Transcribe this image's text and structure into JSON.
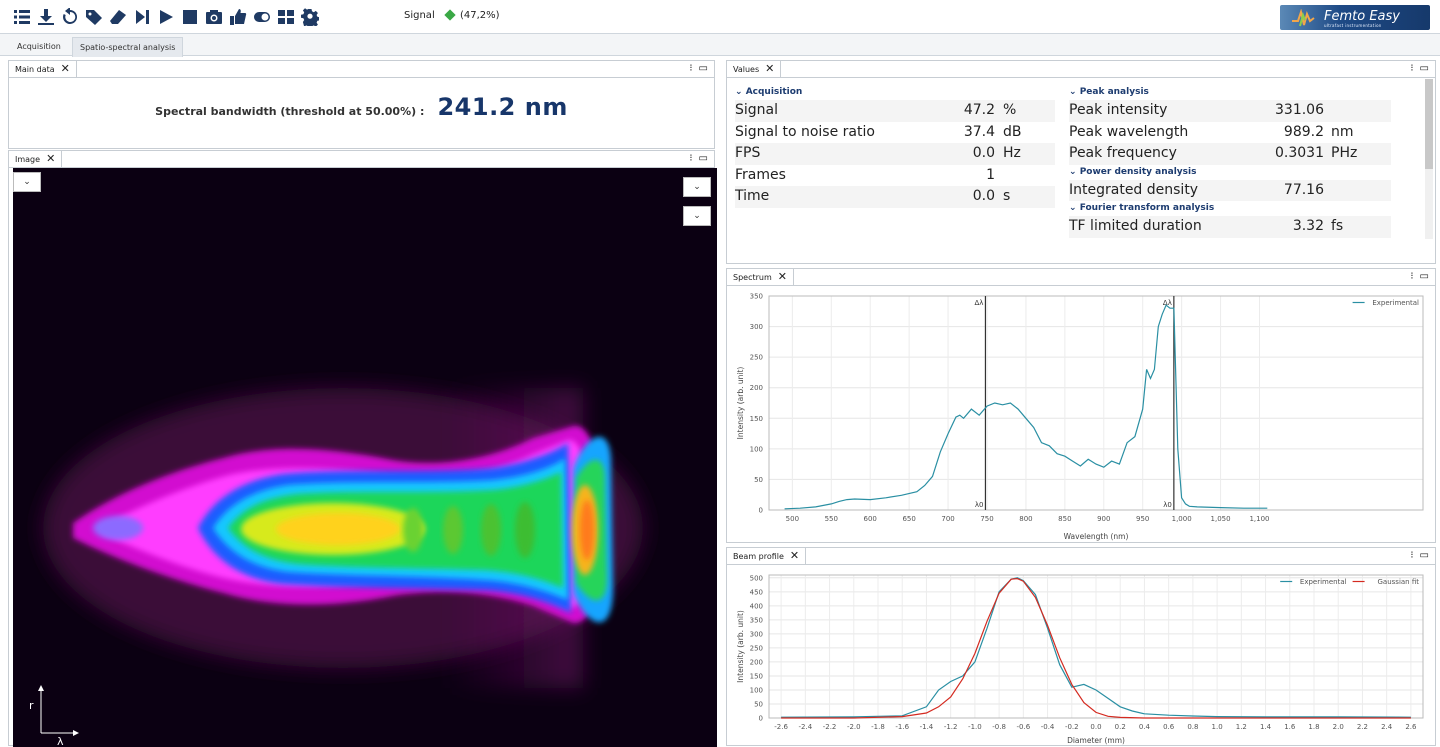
{
  "toolbar": {
    "icons": [
      "list-icon",
      "download-icon",
      "reset-icon",
      "tag-icon",
      "eraser-icon",
      "step-forward-icon",
      "play-icon",
      "stop-icon",
      "camera-icon",
      "thumbs-up-icon",
      "contrast-icon",
      "grid-icon",
      "gear-icon"
    ],
    "signal_label": "Signal",
    "signal_value": "(47,2%)",
    "signal_color": "#3aa845",
    "brand_name": "Femto Easy",
    "brand_sub": "ultrafast instrumentation"
  },
  "tabs": [
    {
      "label": "Acquisition",
      "active": false
    },
    {
      "label": "Spatio-spectral analysis",
      "active": true
    }
  ],
  "main_data": {
    "tab_label": "Main data",
    "bandwidth_label": "Spectral bandwidth (threshold at 50.00%) :",
    "bandwidth_value": "241.2 nm"
  },
  "image_panel": {
    "tab_label": "Image",
    "axis_r": "r",
    "axis_lambda": "λ"
  },
  "values_panel": {
    "tab_label": "Values",
    "acquisition": {
      "title": "Acquisition",
      "rows": [
        {
          "name": "Signal",
          "value": "47.2",
          "unit": "%"
        },
        {
          "name": "Signal to noise ratio",
          "value": "37.4",
          "unit": "dB"
        },
        {
          "name": "FPS",
          "value": "0.0",
          "unit": "Hz"
        },
        {
          "name": "Frames",
          "value": "1",
          "unit": ""
        },
        {
          "name": "Time",
          "value": "0.0",
          "unit": "s"
        }
      ]
    },
    "peak": {
      "title": "Peak analysis",
      "rows": [
        {
          "name": "Peak intensity",
          "value": "331.06",
          "unit": ""
        },
        {
          "name": "Peak wavelength",
          "value": "989.2",
          "unit": "nm"
        },
        {
          "name": "Peak frequency",
          "value": "0.3031",
          "unit": "PHz"
        }
      ]
    },
    "power": {
      "title": "Power density analysis",
      "rows": [
        {
          "name": "Integrated density",
          "value": "77.16",
          "unit": ""
        }
      ]
    },
    "fourier": {
      "title": "Fourier transform analysis",
      "rows": [
        {
          "name": "TF limited duration",
          "value": "3.32",
          "unit": "fs"
        }
      ]
    }
  },
  "chart_data": [
    {
      "type": "line",
      "panel": "Spectrum",
      "xlabel": "Wavelength (nm)",
      "ylabel": "Intensity (arb. unit)",
      "xlim": [
        470,
        1310
      ],
      "ylim": [
        0,
        350
      ],
      "xticks": [
        500,
        550,
        600,
        650,
        700,
        750,
        800,
        850,
        900,
        950,
        1000,
        1050,
        1100
      ],
      "xtick_labels": [
        "500",
        "550",
        "600",
        "650",
        "700",
        "750",
        "800",
        "850",
        "900",
        "950",
        "1,000",
        "1,050",
        "1,100"
      ],
      "yticks": [
        0,
        50,
        100,
        150,
        200,
        250,
        300,
        350
      ],
      "grid": true,
      "legend": "top-right",
      "markers": [
        {
          "x": 748,
          "top_label": "Δλ",
          "bottom_label": "λ0"
        },
        {
          "x": 990,
          "top_label": "Δλ",
          "bottom_label": "λ0"
        }
      ],
      "series": [
        {
          "name": "Experimental",
          "color": "#2a8fa3",
          "x": [
            490,
            510,
            530,
            550,
            560,
            570,
            580,
            600,
            620,
            640,
            660,
            670,
            680,
            690,
            700,
            710,
            715,
            720,
            730,
            740,
            750,
            760,
            770,
            780,
            790,
            800,
            810,
            820,
            830,
            840,
            850,
            860,
            870,
            880,
            890,
            900,
            910,
            920,
            930,
            940,
            950,
            955,
            960,
            965,
            970,
            975,
            980,
            985,
            990,
            995,
            1000,
            1005,
            1010,
            1020,
            1050,
            1080,
            1100,
            1110
          ],
          "y": [
            2,
            3,
            5,
            10,
            14,
            17,
            18,
            17,
            20,
            24,
            30,
            40,
            55,
            95,
            125,
            152,
            155,
            150,
            165,
            155,
            170,
            175,
            172,
            175,
            165,
            150,
            135,
            110,
            105,
            92,
            88,
            80,
            72,
            83,
            75,
            70,
            80,
            75,
            110,
            120,
            165,
            230,
            215,
            230,
            300,
            320,
            335,
            330,
            330,
            100,
            20,
            10,
            6,
            5,
            4,
            3,
            3,
            3
          ]
        }
      ]
    },
    {
      "type": "line",
      "panel": "Beam profile",
      "xlabel": "Diameter (mm)",
      "ylabel": "Intensity (arb. unit)",
      "xlim": [
        -2.7,
        2.7
      ],
      "ylim": [
        0,
        510
      ],
      "xticks": [
        -2.6,
        -2.4,
        -2.2,
        -2.0,
        -1.8,
        -1.6,
        -1.4,
        -1.2,
        -1.0,
        -0.8,
        -0.6,
        -0.4,
        -0.2,
        0.0,
        0.2,
        0.4,
        0.6,
        0.8,
        1.0,
        1.2,
        1.4,
        1.6,
        1.8,
        2.0,
        2.2,
        2.4,
        2.6
      ],
      "xtick_labels": [
        "-2.6",
        "-2.4",
        "-2.2",
        "-2.0",
        "-1.8",
        "-1.6",
        "-1.4",
        "-1.2",
        "-1.0",
        "-0.8",
        "-0.6",
        "-0.4",
        "-0.2",
        "0.0",
        "0.2",
        "0.4",
        "0.6",
        "0.8",
        "1.0",
        "1.2",
        "1.4",
        "1.6",
        "1.8",
        "2.0",
        "2.2",
        "2.4",
        "2.6"
      ],
      "yticks": [
        0,
        50,
        100,
        150,
        200,
        250,
        300,
        350,
        400,
        450,
        500
      ],
      "grid": true,
      "legend": "top-right",
      "series": [
        {
          "name": "Experimental",
          "color": "#2a8fa3",
          "x": [
            -2.6,
            -2.0,
            -1.6,
            -1.4,
            -1.3,
            -1.2,
            -1.1,
            -1.0,
            -0.9,
            -0.8,
            -0.7,
            -0.65,
            -0.6,
            -0.5,
            -0.4,
            -0.3,
            -0.2,
            -0.1,
            0.0,
            0.1,
            0.2,
            0.3,
            0.4,
            0.6,
            0.8,
            1.0,
            1.4,
            2.0,
            2.6
          ],
          "y": [
            3,
            4,
            8,
            40,
            100,
            130,
            150,
            200,
            320,
            450,
            495,
            500,
            490,
            440,
            320,
            190,
            110,
            120,
            100,
            70,
            40,
            25,
            15,
            10,
            7,
            5,
            4,
            4,
            3
          ]
        },
        {
          "name": "Gaussian fit",
          "color": "#d42a20",
          "x": [
            -2.6,
            -2.0,
            -1.6,
            -1.4,
            -1.3,
            -1.2,
            -1.1,
            -1.0,
            -0.9,
            -0.8,
            -0.7,
            -0.65,
            -0.6,
            -0.5,
            -0.4,
            -0.3,
            -0.2,
            -0.1,
            0.0,
            0.1,
            0.2,
            0.4,
            0.6,
            1.0,
            1.4,
            2.0,
            2.6
          ],
          "y": [
            0,
            0,
            5,
            18,
            40,
            75,
            140,
            230,
            345,
            445,
            495,
            497,
            488,
            430,
            330,
            215,
            120,
            55,
            20,
            6,
            2,
            0,
            0,
            0,
            0,
            0,
            0
          ]
        }
      ]
    }
  ]
}
